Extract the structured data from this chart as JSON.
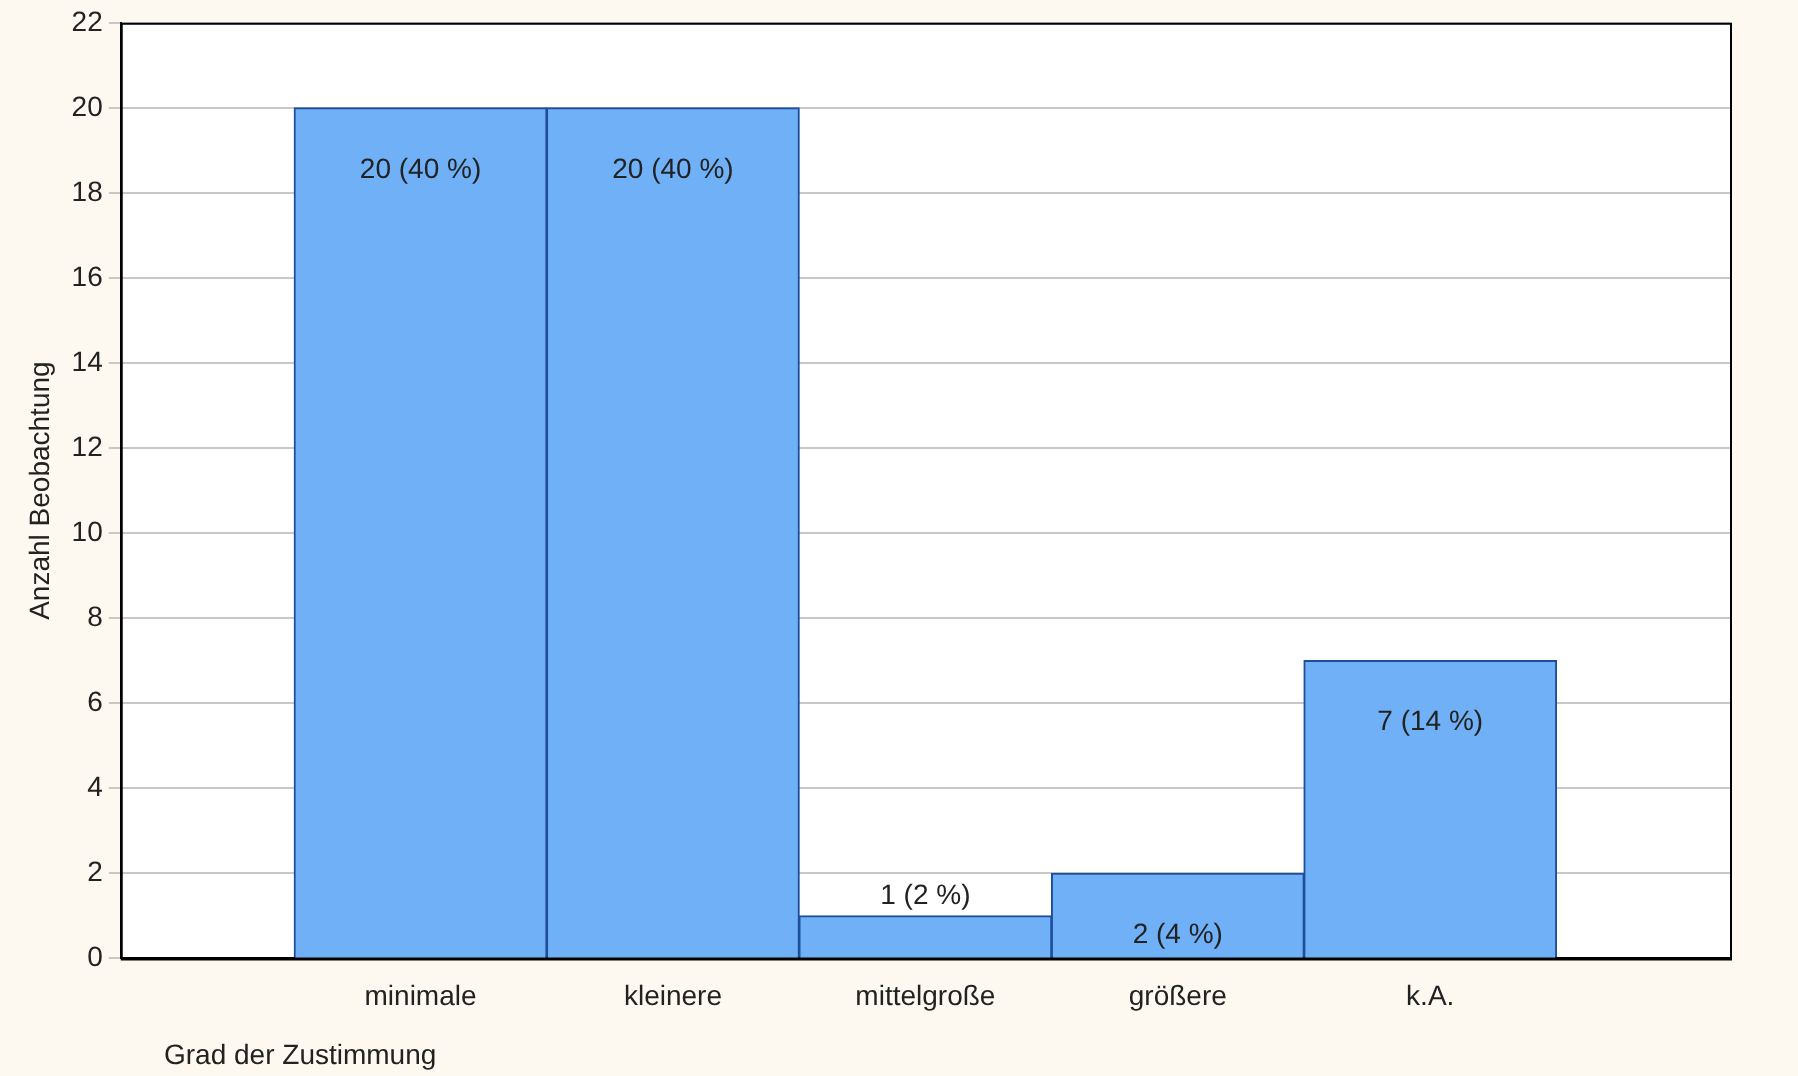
{
  "chart_data": {
    "type": "bar",
    "xlabel": "Grad der Zustimmung",
    "ylabel": "Anzahl Beobachtung",
    "categories": [
      "minimale",
      "kleinere",
      "mittelgroße",
      "größere",
      "k.A."
    ],
    "values": [
      20,
      20,
      1,
      2,
      7
    ],
    "value_labels": [
      "20 (40 %)",
      "20 (40 %)",
      "1 (2 %)",
      "2 (4 %)",
      "7 (14 %)"
    ],
    "color": "#6fb0f7",
    "ylim": [
      0,
      22
    ],
    "yticks": [
      0,
      2,
      4,
      6,
      8,
      10,
      12,
      14,
      16,
      18,
      20,
      22
    ],
    "grid": "y",
    "legend": false
  }
}
